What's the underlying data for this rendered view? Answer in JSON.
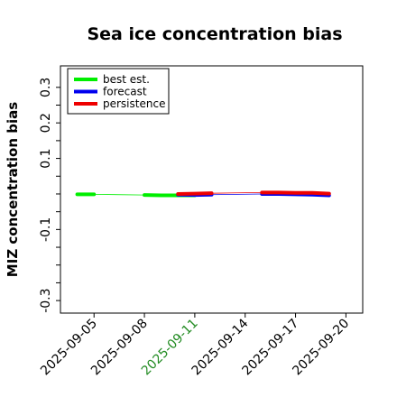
{
  "chart_data": {
    "type": "line",
    "title": "Sea ice concentration bias",
    "xlabel": "",
    "ylabel": "MIZ concentration bias",
    "ylim": [
      -0.32,
      0.33
    ],
    "xlim": [
      "2025-09-03",
      "2025-09-21"
    ],
    "y_ticks": [
      {
        "value": 0.3,
        "label": "0.3"
      },
      {
        "value": 0.25,
        "label": ""
      },
      {
        "value": 0.2,
        "label": "0.2"
      },
      {
        "value": 0.15,
        "label": ""
      },
      {
        "value": 0.1,
        "label": "0.1"
      },
      {
        "value": 0.05,
        "label": ""
      },
      {
        "value": 0.0,
        "label": ""
      },
      {
        "value": -0.05,
        "label": ""
      },
      {
        "value": -0.1,
        "label": "-0.1"
      },
      {
        "value": -0.15,
        "label": ""
      },
      {
        "value": -0.2,
        "label": ""
      },
      {
        "value": -0.25,
        "label": ""
      },
      {
        "value": -0.3,
        "label": "-0.3"
      }
    ],
    "x_ticks": [
      {
        "value": "2025-09-05",
        "label": "2025-09-05",
        "color": "#000000"
      },
      {
        "value": "2025-09-08",
        "label": "2025-09-08",
        "color": "#000000"
      },
      {
        "value": "2025-09-11",
        "label": "2025-09-11",
        "color": "#228b22"
      },
      {
        "value": "2025-09-14",
        "label": "2025-09-14",
        "color": "#000000"
      },
      {
        "value": "2025-09-17",
        "label": "2025-09-17",
        "color": "#000000"
      },
      {
        "value": "2025-09-20",
        "label": "2025-09-20",
        "color": "#000000"
      }
    ],
    "grid": false,
    "legend_position": "top-left",
    "series": [
      {
        "name": "best est.",
        "color": "#00ee00",
        "points": [
          [
            "2025-09-04",
            -0.001
          ],
          [
            "2025-09-05",
            -0.001
          ],
          [
            "2025-09-08",
            -0.003
          ],
          [
            "2025-09-09",
            -0.004
          ],
          [
            "2025-09-10",
            -0.004
          ],
          [
            "2025-09-11",
            -0.004
          ]
        ],
        "segments": [
          [
            0,
            2
          ],
          [
            2,
            6
          ]
        ],
        "connector": {
          "from": "2025-09-05",
          "to": "2025-09-08",
          "color": "#00ee00",
          "width": 0.8
        }
      },
      {
        "name": "forecast",
        "color": "#0000ee",
        "points": [
          [
            "2025-09-10",
            -0.002
          ],
          [
            "2025-09-11",
            -0.003
          ],
          [
            "2025-09-12",
            -0.002
          ],
          [
            "2025-09-15",
            0.0
          ],
          [
            "2025-09-16",
            0.0
          ],
          [
            "2025-09-17",
            -0.001
          ],
          [
            "2025-09-18",
            -0.002
          ],
          [
            "2025-09-19",
            -0.004
          ]
        ],
        "segments": [
          [
            0,
            3
          ],
          [
            3,
            8
          ]
        ],
        "connector": {
          "from": "2025-09-08",
          "to": "2025-09-10",
          "color": "#333333",
          "width": 0.8
        },
        "connector2": {
          "from": "2025-09-12",
          "to": "2025-09-15",
          "color": "#0000ee",
          "width": 0.8
        }
      },
      {
        "name": "persistence",
        "color": "#ee0000",
        "points": [
          [
            "2025-09-10",
            0.0
          ],
          [
            "2025-09-11",
            0.001
          ],
          [
            "2025-09-12",
            0.002
          ],
          [
            "2025-09-15",
            0.004
          ],
          [
            "2025-09-16",
            0.004
          ],
          [
            "2025-09-17",
            0.003
          ],
          [
            "2025-09-18",
            0.003
          ],
          [
            "2025-09-19",
            0.001
          ]
        ],
        "segments": [
          [
            0,
            3
          ],
          [
            3,
            8
          ]
        ],
        "connector": {
          "from": "2025-09-12",
          "to": "2025-09-15",
          "color": "#ee0000",
          "width": 0.8
        }
      }
    ]
  }
}
